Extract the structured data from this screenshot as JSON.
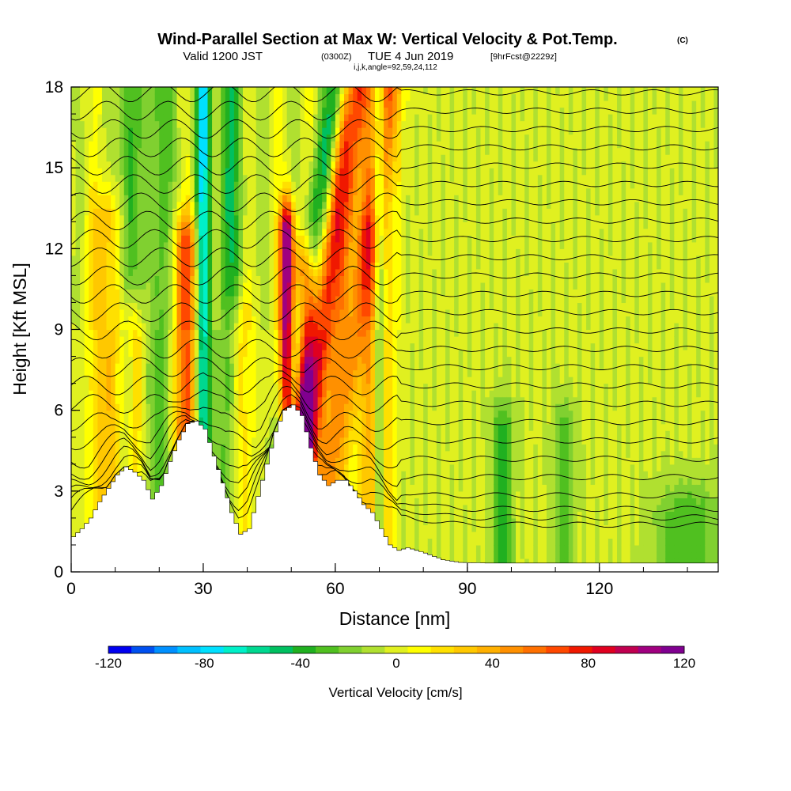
{
  "title": "Wind-Parallel Section at Max W: Vertical Velocity & Pot.Temp.",
  "title_mark": "(C)",
  "subtitle_main": "Valid 1200 JST",
  "subtitle_utc": "(0300Z)",
  "subtitle_date": "TUE 4 Jun 2019",
  "subtitle_fcst": "[9hrFcst@2229z]",
  "subtitle_coords": "i,j,k,angle=92,59,24,112",
  "chart_data": {
    "type": "heatmap",
    "xlabel": "Distance [nm]",
    "ylabel": "Height [Kft MSL]",
    "xlim": [
      0,
      147
    ],
    "ylim": [
      0,
      18
    ],
    "x_ticks": [
      "0",
      "30",
      "60",
      "90",
      "120"
    ],
    "y_ticks": [
      "0",
      "3",
      "6",
      "9",
      "12",
      "15",
      "18"
    ],
    "colorbar": {
      "label": "Vertical Velocity [cm/s]",
      "ticks": [
        "-120",
        "-80",
        "-40",
        "0",
        "40",
        "80",
        "120"
      ],
      "range": [
        -120,
        120
      ],
      "step": 10,
      "colors": [
        "#0000f0",
        "#0050f0",
        "#0090ff",
        "#00c0ff",
        "#00e0ff",
        "#00f0c8",
        "#00d890",
        "#00c060",
        "#20b020",
        "#50c020",
        "#80d030",
        "#b0e030",
        "#e0f020",
        "#ffff00",
        "#ffe000",
        "#ffc800",
        "#ffb000",
        "#ff9000",
        "#ff7000",
        "#ff4800",
        "#f01800",
        "#e00020",
        "#c00050",
        "#a00080",
        "#800090"
      ]
    },
    "terrain": [
      [
        0,
        1.3
      ],
      [
        2,
        1.6
      ],
      [
        4,
        2.0
      ],
      [
        6,
        2.6
      ],
      [
        8,
        3.1
      ],
      [
        10,
        3.6
      ],
      [
        12,
        3.9
      ],
      [
        14,
        3.7
      ],
      [
        16,
        3.4
      ],
      [
        18,
        2.7
      ],
      [
        20,
        3.2
      ],
      [
        22,
        4.1
      ],
      [
        24,
        4.9
      ],
      [
        26,
        5.5
      ],
      [
        28,
        5.6
      ],
      [
        30,
        5.3
      ],
      [
        32,
        4.3
      ],
      [
        34,
        3.3
      ],
      [
        36,
        2.2
      ],
      [
        38,
        1.4
      ],
      [
        40,
        1.6
      ],
      [
        42,
        2.8
      ],
      [
        44,
        4.0
      ],
      [
        46,
        5.2
      ],
      [
        48,
        6.0
      ],
      [
        50,
        6.2
      ],
      [
        52,
        5.8
      ],
      [
        54,
        4.6
      ],
      [
        56,
        3.6
      ],
      [
        58,
        3.2
      ],
      [
        60,
        3.4
      ],
      [
        62,
        3.4
      ],
      [
        64,
        3.0
      ],
      [
        66,
        2.5
      ],
      [
        68,
        2.2
      ],
      [
        70,
        1.6
      ],
      [
        72,
        1.0
      ],
      [
        74,
        0.8
      ],
      [
        76,
        0.9
      ],
      [
        80,
        0.7
      ],
      [
        84,
        0.45
      ],
      [
        88,
        0.35
      ],
      [
        94,
        0.33
      ],
      [
        100,
        0.33
      ],
      [
        147,
        0.33
      ]
    ],
    "updraft_columns": [
      {
        "x": 8,
        "w": 2.5,
        "ztop": 13,
        "amp": 35
      },
      {
        "x": 14,
        "w": 1.8,
        "ztop": 9,
        "amp": 45
      },
      {
        "x": 26,
        "w": 2.0,
        "ztop": 12,
        "amp": 70
      },
      {
        "x": 38,
        "w": 2.0,
        "ztop": 9,
        "amp": 35
      },
      {
        "x": 49,
        "w": 1.2,
        "ztop": 12.5,
        "amp": 120
      },
      {
        "x": 53,
        "w": 1.5,
        "ztop": 11,
        "amp": 85
      },
      {
        "x": 57,
        "w": 2.5,
        "ztop": 18,
        "amp": 80
      },
      {
        "x": 64,
        "w": 2.5,
        "ztop": 18,
        "amp": 50
      },
      {
        "x": 68,
        "w": 1.8,
        "ztop": 12,
        "amp": 40
      },
      {
        "x": 71,
        "w": 1.5,
        "ztop": 18,
        "amp": 40
      }
    ],
    "downdraft_columns": [
      {
        "x": 13,
        "w": 1.5,
        "ztop": 18,
        "amp": -40
      },
      {
        "x": 20,
        "w": 2.5,
        "ztop": 18,
        "amp": -30
      },
      {
        "x": 30,
        "w": 1.2,
        "ztop": 18,
        "amp": -75
      },
      {
        "x": 36,
        "w": 2.0,
        "ztop": 18,
        "amp": -40
      },
      {
        "x": 52,
        "w": 1.8,
        "ztop": 18,
        "amp": -50
      },
      {
        "x": 70,
        "w": 1.0,
        "ztop": 18,
        "amp": -70
      },
      {
        "x": 98,
        "w": 1.5,
        "ztop": 5,
        "amp": -40
      },
      {
        "x": 112,
        "w": 1.5,
        "ztop": 5,
        "amp": -30
      },
      {
        "x": 140,
        "w": 5.0,
        "ztop": 2,
        "amp": -30
      }
    ],
    "isentropes": 27
  },
  "colors": {
    "background": "#ffffff",
    "terrain": "#ffffff",
    "contour": "#000000",
    "frame": "#000000"
  }
}
